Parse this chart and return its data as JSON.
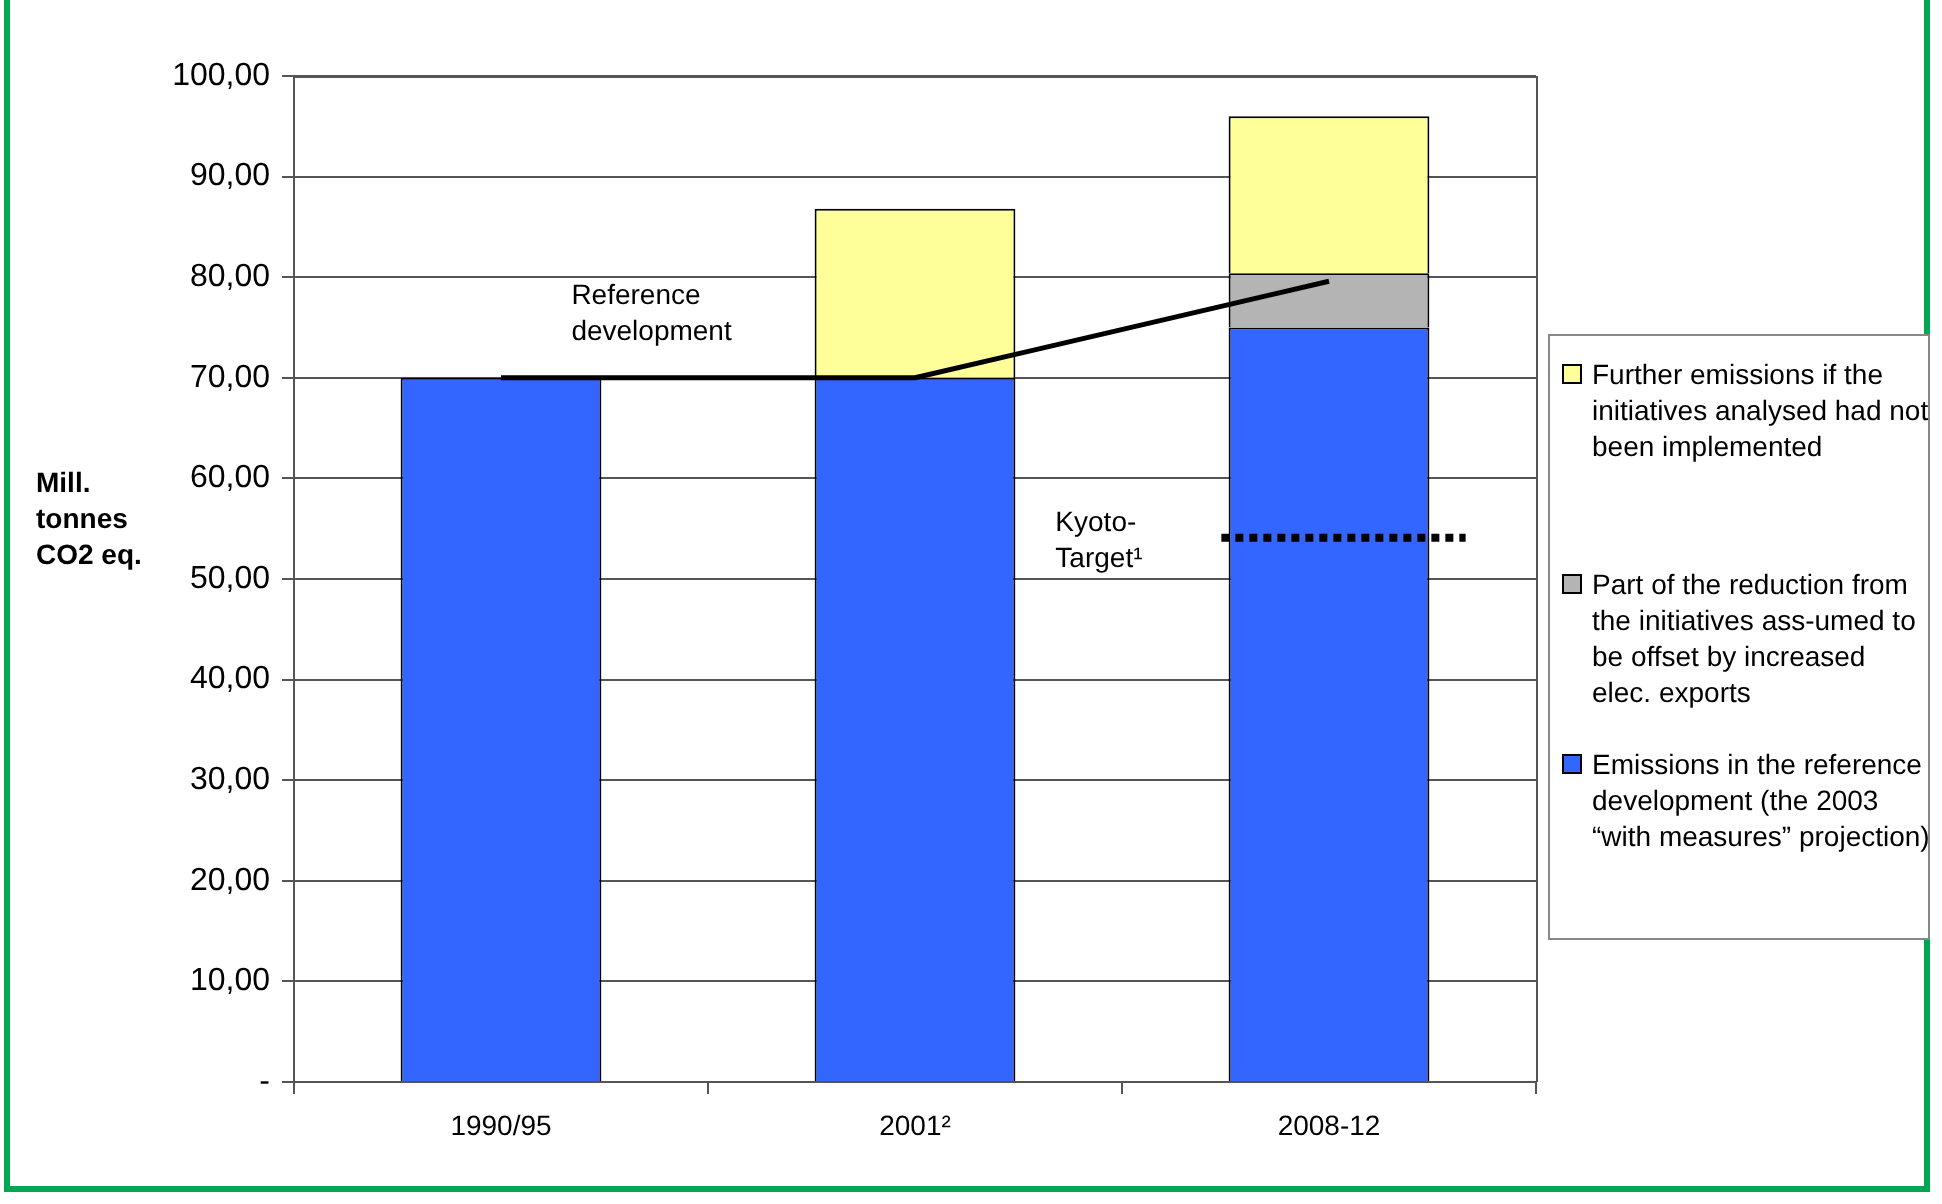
{
  "chart_data": {
    "type": "bar",
    "stacked": true,
    "ylabel": "Mill. tonnes CO2 eq.",
    "categories": [
      "1990/95",
      "2001²",
      "2008-12"
    ],
    "series": [
      {
        "name": "Emissions in the reference development (the 2003 “with measures” projection)",
        "color": "#3366ff",
        "values": [
          70,
          70,
          75
        ]
      },
      {
        "name": "Part of the reduction from the initiatives ass-umed to be offset by increased elec. exports",
        "color": "#b4b4b4",
        "values": [
          null,
          null,
          5.4
        ]
      },
      {
        "name": "Further emissions if the initiatives analysed had not been implemented",
        "color": "#ffff99",
        "values": [
          null,
          16.8,
          15.6
        ]
      },
      {
        "name": "Reference development",
        "type": "line",
        "color": "#000000",
        "values": [
          70,
          70,
          79.6
        ],
        "marker": "none",
        "line_style": "solid"
      }
    ],
    "ref_lines": [
      {
        "axis": "y",
        "value": 54.1,
        "label": "Kyoto-Target¹",
        "color": "#000000",
        "line_style": "dotted"
      }
    ],
    "ylim": [
      0,
      100
    ],
    "yticks": [
      {
        "value": 0,
        "label": "-"
      },
      {
        "value": 10,
        "label": "10,00"
      },
      {
        "value": 20,
        "label": "20,00"
      },
      {
        "value": 30,
        "label": "30,00"
      },
      {
        "value": 40,
        "label": "40,00"
      },
      {
        "value": 50,
        "label": "50,00"
      },
      {
        "value": 60,
        "label": "60,00"
      },
      {
        "value": 70,
        "label": "70,00"
      },
      {
        "value": 80,
        "label": "80,00"
      },
      {
        "value": 90,
        "label": "90,00"
      },
      {
        "value": 100,
        "label": "100,00"
      }
    ],
    "grid": "y",
    "legend": "right"
  }
}
